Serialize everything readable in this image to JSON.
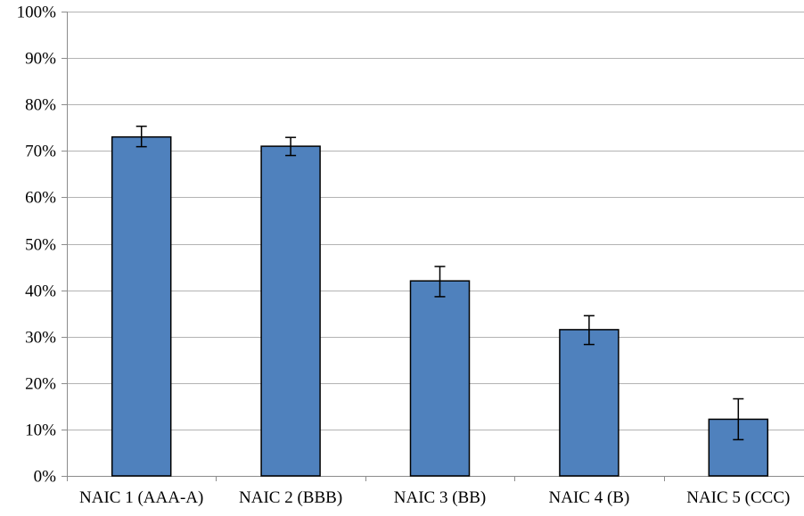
{
  "chart_data": {
    "type": "bar",
    "categories": [
      "NAIC 1 (AAA-A)",
      "NAIC 2 (BBB)",
      "NAIC 3 (BB)",
      "NAIC 4 (B)",
      "NAIC 5 (CCC)"
    ],
    "values": [
      0.73,
      0.71,
      0.42,
      0.315,
      0.122
    ],
    "error_low": [
      0.709,
      0.69,
      0.386,
      0.283,
      0.078
    ],
    "error_high": [
      0.753,
      0.729,
      0.451,
      0.345,
      0.166
    ],
    "ylim": [
      0,
      1
    ],
    "y_ticks": [
      0,
      0.1,
      0.2,
      0.3,
      0.4,
      0.5,
      0.6,
      0.7,
      0.8,
      0.9,
      1.0
    ],
    "y_tick_labels": [
      "0%",
      "10%",
      "20%",
      "30%",
      "40%",
      "50%",
      "60%",
      "70%",
      "80%",
      "90%",
      "100%"
    ],
    "title": "",
    "xlabel": "",
    "ylabel": "",
    "grid": true,
    "legend": "none",
    "bar_color": "#4f81bd"
  }
}
